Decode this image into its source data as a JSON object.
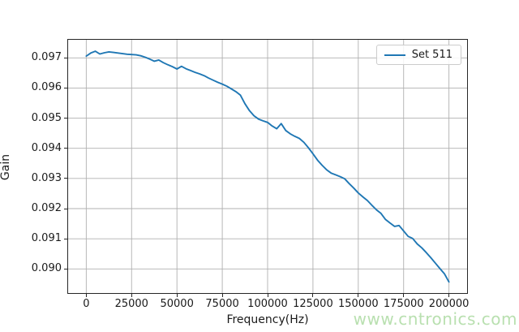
{
  "watermark": "www.cntronics.com",
  "colors": {
    "line": "#1f77b4",
    "grid": "#b0b0b0",
    "spine": "#262626",
    "tick": "#262626",
    "text": "#1a1a1a",
    "legend_border": "#cccccc",
    "watermark": "#b9e0b0",
    "background": "#ffffff"
  },
  "chart_data": {
    "type": "line",
    "title": "",
    "xlabel": "Frequency(Hz)",
    "ylabel": "Gain",
    "grid": true,
    "legend": {
      "position": "upper right",
      "entries": [
        {
          "label": "Set 511",
          "color": "#1f77b4"
        }
      ]
    },
    "xlim": [
      -10000,
      210000
    ],
    "ylim": [
      0.0892,
      0.0976
    ],
    "xticks": [
      0,
      25000,
      50000,
      75000,
      100000,
      125000,
      150000,
      175000,
      200000
    ],
    "xtick_labels": [
      "0",
      "25000",
      "50000",
      "75000",
      "100000",
      "125000",
      "150000",
      "175000",
      "200000"
    ],
    "yticks": [
      0.09,
      0.091,
      0.092,
      0.093,
      0.094,
      0.095,
      0.096,
      0.097
    ],
    "ytick_labels": [
      "0.090",
      "0.091",
      "0.092",
      "0.093",
      "0.094",
      "0.095",
      "0.096",
      "0.097"
    ],
    "series": [
      {
        "name": "Set 511",
        "color": "#1f77b4",
        "x": [
          0,
          2500,
          5000,
          7500,
          10000,
          12500,
          15000,
          17500,
          20000,
          22500,
          25000,
          27500,
          30000,
          32500,
          35000,
          37500,
          40000,
          42500,
          45000,
          47500,
          50000,
          52500,
          55000,
          57500,
          60000,
          62500,
          65000,
          67500,
          70000,
          72500,
          75000,
          77500,
          80000,
          82500,
          85000,
          87500,
          90000,
          92500,
          95000,
          97500,
          100000,
          102500,
          105000,
          107500,
          110000,
          112500,
          115000,
          117500,
          120000,
          122500,
          125000,
          127500,
          130000,
          132500,
          135000,
          137500,
          140000,
          142500,
          145000,
          147500,
          150000,
          152500,
          155000,
          157500,
          160000,
          162500,
          165000,
          167500,
          170000,
          172500,
          175000,
          177500,
          180000,
          182500,
          185000,
          187500,
          190000,
          192500,
          195000,
          197500,
          200000
        ],
        "y": [
          0.09706,
          0.09716,
          0.09722,
          0.09713,
          0.09717,
          0.0972,
          0.09718,
          0.09716,
          0.09714,
          0.09712,
          0.09711,
          0.0971,
          0.09707,
          0.09702,
          0.09696,
          0.09689,
          0.09693,
          0.09684,
          0.09677,
          0.09671,
          0.09663,
          0.09672,
          0.09664,
          0.09658,
          0.09652,
          0.09647,
          0.09641,
          0.09633,
          0.09626,
          0.09619,
          0.09613,
          0.09606,
          0.09597,
          0.09588,
          0.09576,
          0.09548,
          0.09525,
          0.09508,
          0.09497,
          0.09491,
          0.09486,
          0.09474,
          0.09465,
          0.09482,
          0.09459,
          0.09448,
          0.0944,
          0.09433,
          0.0942,
          0.09402,
          0.09382,
          0.09361,
          0.09344,
          0.09329,
          0.09318,
          0.09312,
          0.09306,
          0.09299,
          0.09283,
          0.09268,
          0.09252,
          0.09239,
          0.09227,
          0.09211,
          0.09196,
          0.09184,
          0.09164,
          0.09152,
          0.09141,
          0.09144,
          0.09126,
          0.09108,
          0.09101,
          0.09083,
          0.0907,
          0.09054,
          0.09037,
          0.09019,
          0.09001,
          0.08984,
          0.08957
        ]
      }
    ]
  }
}
